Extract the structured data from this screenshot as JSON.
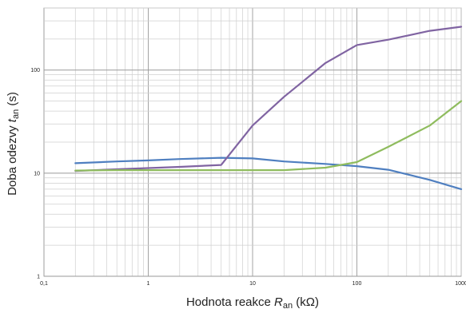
{
  "chart_data": {
    "type": "line",
    "title": "",
    "xlabel": {
      "prefix": "Hodnota reakce ",
      "symbol": "R",
      "subscript": "an",
      "suffix": " (kΩ)"
    },
    "ylabel": {
      "prefix": "Doba odezvy ",
      "symbol": "t",
      "subscript": "an",
      "suffix": " (s)"
    },
    "xscale": "log",
    "yscale": "log",
    "xlim": [
      0.1,
      1000
    ],
    "ylim": [
      1,
      400
    ],
    "xticks": [
      {
        "value": 0.1,
        "label": "0,1"
      },
      {
        "value": 1,
        "label": "1"
      },
      {
        "value": 10,
        "label": "10"
      },
      {
        "value": 100,
        "label": "100"
      },
      {
        "value": 1000,
        "label": "1000"
      }
    ],
    "yticks": [
      {
        "value": 1,
        "label": "1"
      },
      {
        "value": 10,
        "label": "10"
      },
      {
        "value": 100,
        "label": "100"
      }
    ],
    "grid": true,
    "legend": "none",
    "series": [
      {
        "color": "#4f7fc0",
        "x": [
          0.2,
          0.5,
          1,
          2,
          5,
          10,
          20,
          50,
          100,
          200,
          500,
          1000
        ],
        "y": [
          12.5,
          13.0,
          13.3,
          13.7,
          14.1,
          13.9,
          13.0,
          12.3,
          11.7,
          10.8,
          8.6,
          7.0
        ]
      },
      {
        "color": "#8064a2",
        "x": [
          0.2,
          0.5,
          1,
          2,
          5,
          10,
          20,
          50,
          100,
          200,
          500,
          1000
        ],
        "y": [
          10.5,
          10.9,
          11.2,
          11.5,
          12.0,
          29,
          55,
          117,
          175,
          197,
          240,
          263
        ]
      },
      {
        "color": "#8fbc5e",
        "x": [
          0.2,
          0.5,
          1,
          2,
          5,
          10,
          20,
          50,
          100,
          200,
          500,
          1000
        ],
        "y": [
          10.6,
          10.7,
          10.7,
          10.7,
          10.7,
          10.7,
          10.7,
          11.3,
          12.8,
          18,
          29,
          50
        ]
      }
    ]
  }
}
